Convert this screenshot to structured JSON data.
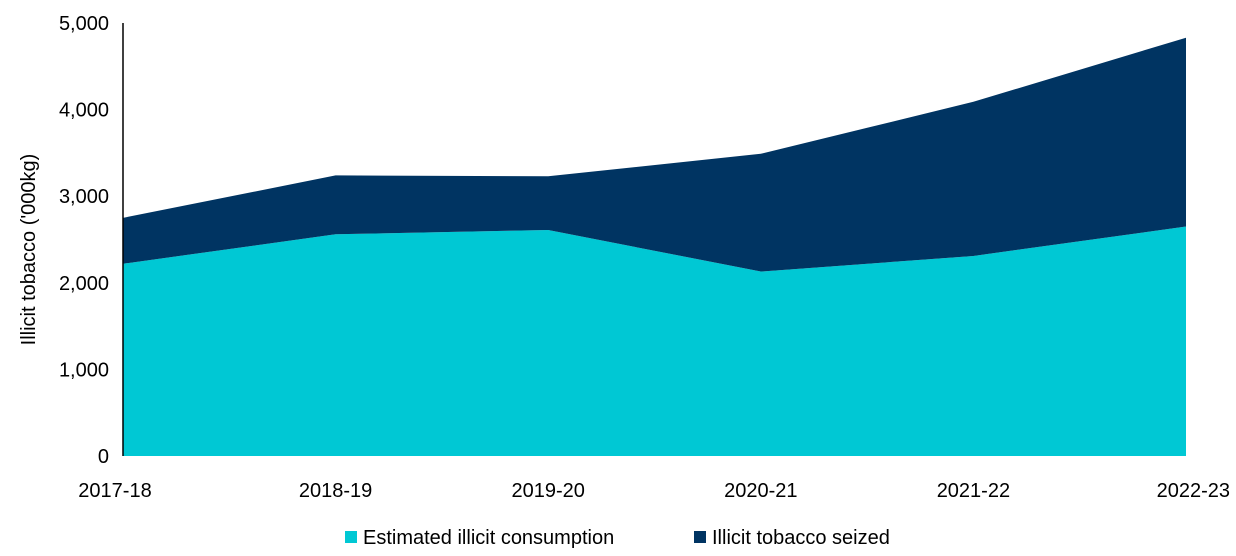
{
  "chart_data": {
    "type": "area",
    "stacked": true,
    "categories": [
      "2017-18",
      "2018-19",
      "2019-20",
      "2020-21",
      "2021-22",
      "2022-23"
    ],
    "series": [
      {
        "name": "Estimated illicit consumption",
        "values": [
          2220,
          2560,
          2610,
          2130,
          2310,
          2650
        ],
        "color": "#00C8D4"
      },
      {
        "name": "Illicit tobacco seized",
        "values": [
          530,
          680,
          620,
          1360,
          1780,
          2180
        ],
        "color": "#003462"
      }
    ],
    "title": "",
    "xlabel": "",
    "ylabel": "Illicit tobacco ('000kg)",
    "ylim": [
      0,
      5000
    ],
    "yticks": [
      "0",
      "1,000",
      "2,000",
      "3,000",
      "4,000",
      "5,000"
    ],
    "ytick_values": [
      0,
      1000,
      2000,
      3000,
      4000,
      5000
    ],
    "grid": false,
    "legend_position": "bottom-center"
  }
}
